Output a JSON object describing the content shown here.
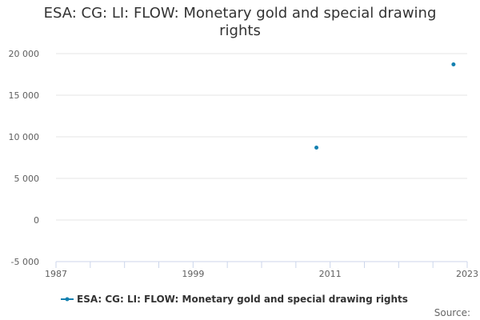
{
  "chart_data": {
    "type": "scatter",
    "title": "ESA: CG: LI: FLOW: Monetary gold and special drawing rights",
    "xlabel": "",
    "ylabel": "",
    "xlim": [
      1987,
      2023
    ],
    "ylim": [
      -5000,
      20000
    ],
    "x_ticks": [
      "1987",
      "1999",
      "2011",
      "2023"
    ],
    "y_ticks": [
      "20 000",
      "15 000",
      "10 000",
      "5 000",
      "0",
      "-5 000"
    ],
    "grid": true,
    "legend_position": "bottom",
    "series": [
      {
        "name": "ESA: CG: LI: FLOW: Monetary gold and special drawing rights",
        "color": "#1380b0",
        "points": [
          {
            "x": 2009.8,
            "y": 8700
          },
          {
            "x": 2021.8,
            "y": 18700
          }
        ]
      }
    ]
  },
  "credit": "Source:"
}
